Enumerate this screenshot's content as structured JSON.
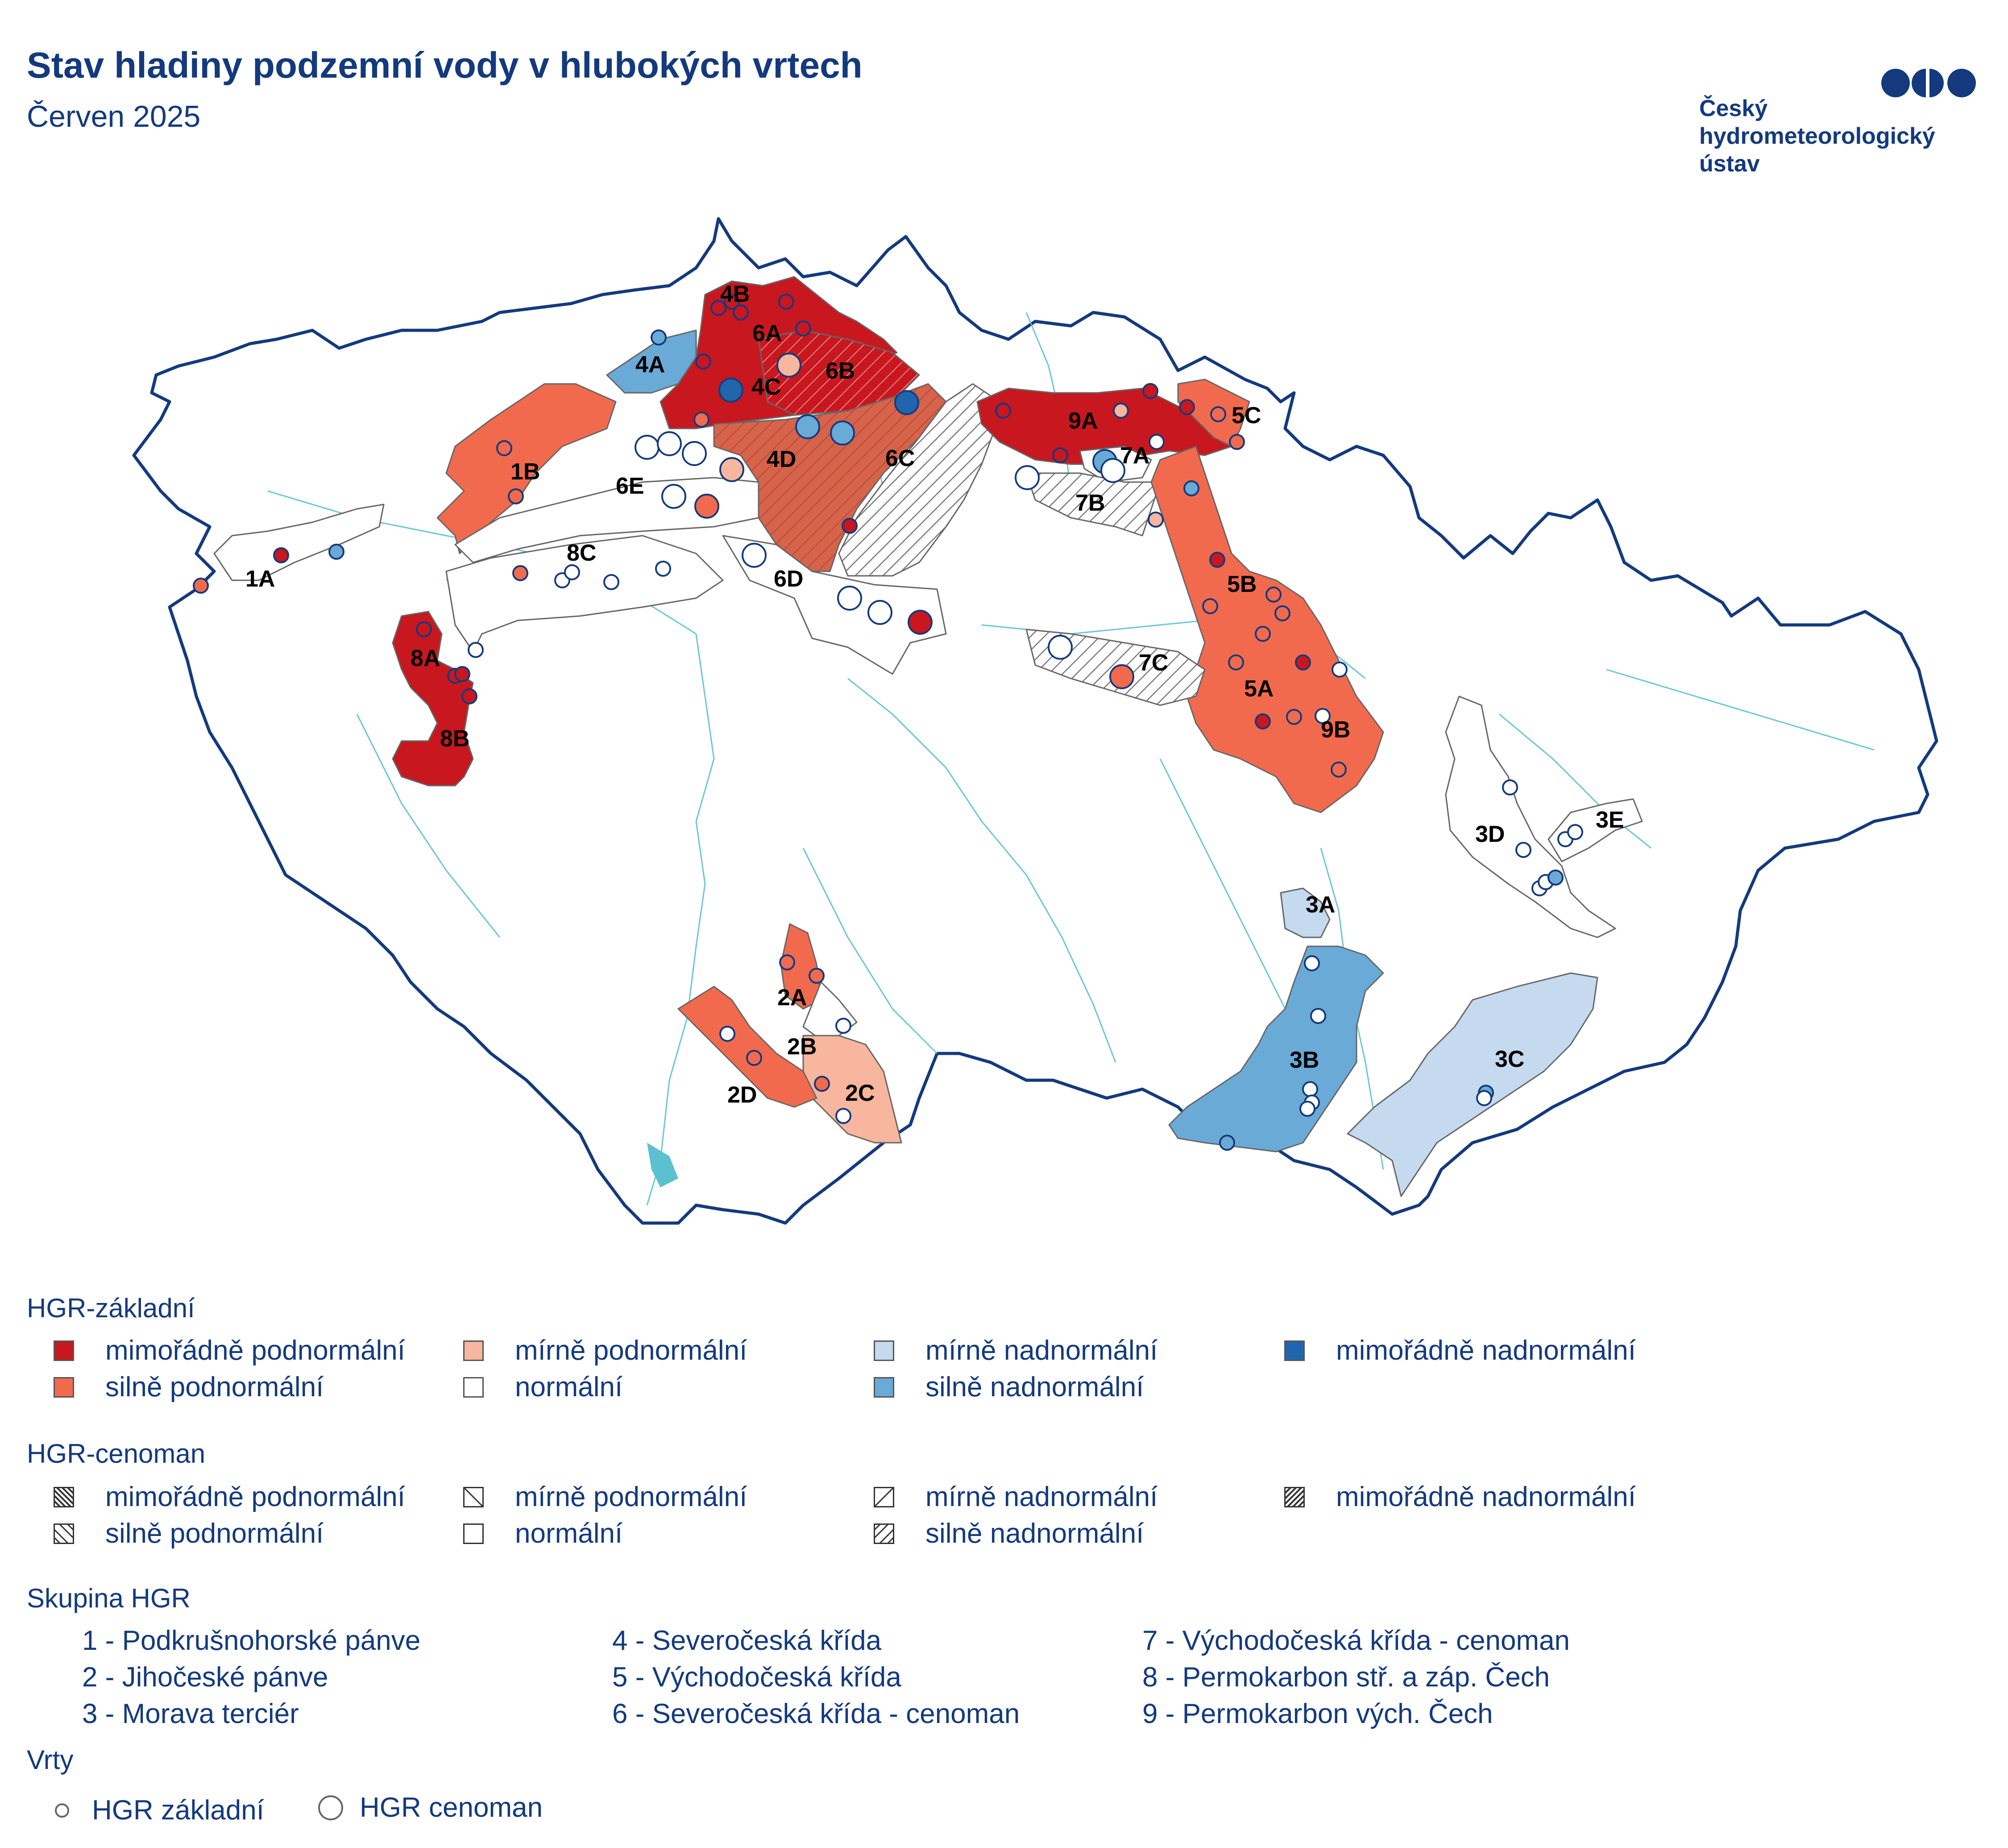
{
  "header": {
    "title": "Stav hladiny podzemní vody v hlubokých vrtech",
    "subtitle": "Červen 2025"
  },
  "logo": {
    "line1": "Český",
    "line2": "hydrometeorologický",
    "line3": "ústav"
  },
  "map": {
    "region_labels": [
      "1A",
      "1B",
      "2A",
      "2B",
      "2C",
      "2D",
      "3A",
      "3B",
      "3C",
      "3D",
      "3E",
      "4A",
      "4B",
      "4C",
      "4D",
      "5A",
      "5B",
      "5C",
      "6A",
      "6B",
      "6C",
      "6D",
      "6E",
      "7A",
      "7B",
      "7C",
      "8A",
      "8B",
      "8C",
      "9A",
      "9B"
    ]
  },
  "colors": {
    "mimoradne_podnormalni": "#c8171f",
    "silne_podnormalni": "#f26a4e",
    "mirne_podnormalni": "#f7b69d",
    "normalni": "#ffffff",
    "mirne_nadnormalni": "#c5d9ef",
    "silne_nadnormalni": "#6aaad6",
    "mimoradne_nadnormalni": "#2166ac",
    "border": "#143a7d",
    "rivers": "#5bc0d0"
  },
  "legend": {
    "zakladni": {
      "title": "HGR-základní",
      "items": [
        {
          "label": "mimořádně podnormální",
          "color": "#c8171f"
        },
        {
          "label": "silně podnormální",
          "color": "#f26a4e"
        },
        {
          "label": "mírně podnormální",
          "color": "#f7b69d"
        },
        {
          "label": "normální",
          "color": "#ffffff"
        },
        {
          "label": "mírně nadnormální",
          "color": "#c5d9ef"
        },
        {
          "label": "silně nadnormální",
          "color": "#6aaad6"
        },
        {
          "label": "mimořádně nadnormální",
          "color": "#2166ac"
        }
      ]
    },
    "cenoman": {
      "title": "HGR-cenoman",
      "items": [
        {
          "label": "mimořádně podnormální"
        },
        {
          "label": "silně podnormální"
        },
        {
          "label": "mírně podnormální"
        },
        {
          "label": "normální"
        },
        {
          "label": "mírně nadnormální"
        },
        {
          "label": "silně nadnormální"
        },
        {
          "label": "mimořádně nadnormální"
        }
      ]
    },
    "skupina": {
      "title": "Skupina HGR",
      "items": [
        "1 - Podkrušnohorské pánve",
        "2 - Jihočeské pánve",
        "3 - Morava terciér",
        "4 - Severočeská křída",
        "5 - Východočeská křída",
        "6 - Severočeská křída - cenoman",
        "7 - Východočeská křída - cenoman",
        "8 - Permokarbon stř. a záp. Čech",
        "9 - Permokarbon vých. Čech"
      ]
    },
    "vrty": {
      "title": "Vrty",
      "items": [
        "HGR základní",
        "HGR cenoman"
      ]
    }
  }
}
